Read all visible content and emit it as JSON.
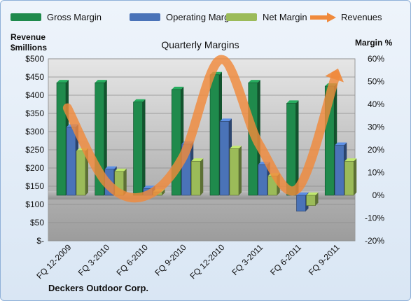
{
  "chart_data": {
    "type": "bar",
    "title": "Quarterly Margins",
    "company": "Deckers Outdoor Corp.",
    "categories": [
      "FQ 12-2009",
      "FQ 3-2010",
      "FQ 6-2010",
      "FQ 9-2010",
      "FQ 12-2010",
      "FQ 3-2011",
      "FQ 6-2011",
      "FQ 9-2011"
    ],
    "series": [
      {
        "name": "Gross Margin",
        "axis": "right",
        "color": "#1f8a4c",
        "values": [
          49.5,
          49.5,
          41,
          46.5,
          53,
          49.5,
          40.5,
          48
        ]
      },
      {
        "name": "Operating Margin",
        "axis": "right",
        "color": "#4a73b8",
        "values": [
          30,
          11.5,
          3,
          22.5,
          32.5,
          13.5,
          -7,
          22
        ]
      },
      {
        "name": "Net Margin",
        "axis": "right",
        "color": "#9bbb59",
        "values": [
          19.5,
          10.5,
          1.5,
          15,
          20.5,
          8.5,
          -4.5,
          15
        ]
      }
    ],
    "line_series": {
      "name": "Revenues",
      "axis": "left",
      "color": "#f08a3c",
      "values": [
        365,
        162,
        122,
        228,
        498,
        265,
        143,
        455
      ]
    },
    "y_left": {
      "label_lines": [
        "Revenue",
        "$millions"
      ],
      "min": 0,
      "max": 500,
      "ticks": [
        "$-",
        "$50",
        "$100",
        "$150",
        "$200",
        "$250",
        "$300",
        "$350",
        "$400",
        "$450",
        "$500"
      ]
    },
    "y_right": {
      "label": "Margin  %",
      "min": -20,
      "max": 60,
      "ticks": [
        "-20%",
        "-10%",
        "0%",
        "10%",
        "20%",
        "30%",
        "40%",
        "50%",
        "60%"
      ]
    },
    "legend_position": "top",
    "grid": true
  }
}
